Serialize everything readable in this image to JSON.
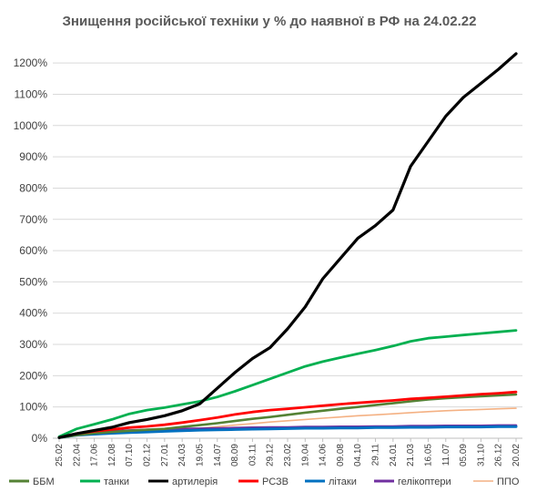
{
  "chart_data": {
    "type": "line",
    "title": "Знищення російської техніки у % до наявної в РФ на 24.02.22",
    "xlabel": "",
    "ylabel": "",
    "ylim": [
      0,
      1250
    ],
    "yticks": [
      0,
      100,
      200,
      300,
      400,
      500,
      600,
      700,
      800,
      900,
      1000,
      1100,
      1200
    ],
    "ytick_labels": [
      "0%",
      "100%",
      "200%",
      "300%",
      "400%",
      "500%",
      "600%",
      "700%",
      "800%",
      "900%",
      "1000%",
      "1100%",
      "1200%"
    ],
    "categories": [
      "25.02",
      "22.04",
      "17.06",
      "12.08",
      "07.10",
      "02.12",
      "27.01",
      "24.03",
      "19.05",
      "14.07",
      "08.09",
      "03.11",
      "29.12",
      "23.02",
      "19.04",
      "14.06",
      "09.08",
      "04.10",
      "29.11",
      "24.01",
      "21.03",
      "16.05",
      "11.07",
      "05.09",
      "31.10",
      "26.12",
      "20.02"
    ],
    "grid": true,
    "legend_position": "bottom",
    "series": [
      {
        "name": "ББМ",
        "color": "#548235",
        "values": [
          2,
          10,
          16,
          20,
          24,
          27,
          30,
          36,
          42,
          48,
          55,
          62,
          68,
          75,
          82,
          88,
          94,
          100,
          106,
          112,
          118,
          124,
          128,
          131,
          134,
          137,
          140
        ]
      },
      {
        "name": "танки",
        "color": "#00b050",
        "values": [
          5,
          30,
          45,
          60,
          78,
          90,
          98,
          108,
          118,
          132,
          150,
          170,
          190,
          210,
          230,
          245,
          258,
          270,
          282,
          295,
          310,
          320,
          325,
          330,
          335,
          340,
          345
        ]
      },
      {
        "name": "артилерія",
        "color": "#000000",
        "values": [
          2,
          15,
          25,
          35,
          50,
          60,
          72,
          88,
          110,
          160,
          210,
          255,
          290,
          350,
          420,
          510,
          575,
          640,
          680,
          730,
          870,
          950,
          1030,
          1090,
          1135,
          1180,
          1230
        ]
      },
      {
        "name": "РСЗВ",
        "color": "#ff0000",
        "values": [
          3,
          15,
          22,
          28,
          34,
          38,
          43,
          50,
          58,
          66,
          76,
          84,
          90,
          94,
          99,
          104,
          109,
          113,
          117,
          121,
          126,
          129,
          133,
          137,
          141,
          144,
          148
        ]
      },
      {
        "name": "літаки",
        "color": "#0070c0",
        "values": [
          2,
          10,
          13,
          16,
          18,
          20,
          22,
          24,
          26,
          27,
          28,
          29,
          30,
          31,
          32,
          32,
          33,
          33,
          34,
          34,
          35,
          35,
          36,
          36,
          36,
          37,
          37
        ]
      },
      {
        "name": "гелікоптери",
        "color": "#7030a0",
        "values": [
          3,
          15,
          19,
          22,
          25,
          27,
          29,
          30,
          31,
          32,
          33,
          34,
          35,
          35,
          36,
          36,
          37,
          37,
          38,
          38,
          39,
          39,
          40,
          40,
          40,
          41,
          41
        ]
      },
      {
        "name": "ППО",
        "color": "#f4b183",
        "values": [
          2,
          8,
          12,
          15,
          18,
          21,
          24,
          28,
          32,
          37,
          42,
          47,
          52,
          56,
          60,
          64,
          68,
          72,
          75,
          78,
          82,
          85,
          88,
          90,
          92,
          94,
          96
        ]
      }
    ]
  }
}
